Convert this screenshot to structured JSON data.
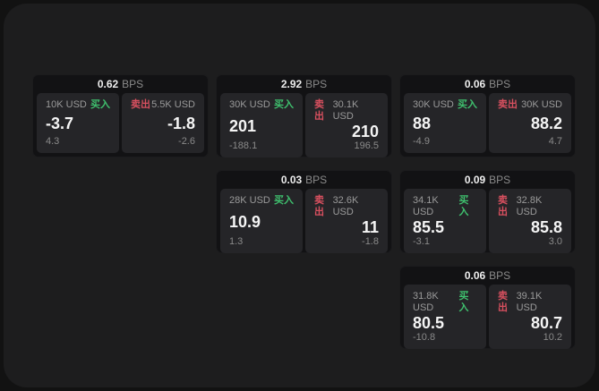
{
  "colors": {
    "buy": "#3fc06e",
    "sell": "#d8505f"
  },
  "labels": {
    "buy": "买入",
    "sell": "卖出",
    "bps_unit": "BPS"
  },
  "cards": [
    {
      "bps": "0.62",
      "grid": {
        "col": 1,
        "row": 1
      },
      "buy": {
        "amount": "10K USD",
        "price": "-3.7",
        "delta": "4.3"
      },
      "sell": {
        "amount": "5.5K USD",
        "price": "-1.8",
        "delta": "-2.6"
      }
    },
    {
      "bps": "2.92",
      "grid": {
        "col": 2,
        "row": 1
      },
      "buy": {
        "amount": "30K USD",
        "price": "201",
        "delta": "-188.1"
      },
      "sell": {
        "amount": "30.1K USD",
        "price": "210",
        "delta": "196.5"
      }
    },
    {
      "bps": "0.06",
      "grid": {
        "col": 3,
        "row": 1
      },
      "buy": {
        "amount": "30K USD",
        "price": "88",
        "delta": "-4.9"
      },
      "sell": {
        "amount": "30K USD",
        "price": "88.2",
        "delta": "4.7"
      }
    },
    {
      "bps": "0.03",
      "grid": {
        "col": 2,
        "row": 2
      },
      "buy": {
        "amount": "28K USD",
        "price": "10.9",
        "delta": "1.3"
      },
      "sell": {
        "amount": "32.6K USD",
        "price": "11",
        "delta": "-1.8"
      }
    },
    {
      "bps": "0.09",
      "grid": {
        "col": 3,
        "row": 2
      },
      "buy": {
        "amount": "34.1K USD",
        "price": "85.5",
        "delta": "-3.1"
      },
      "sell": {
        "amount": "32.8K USD",
        "price": "85.8",
        "delta": "3.0"
      }
    },
    {
      "bps": "0.06",
      "grid": {
        "col": 3,
        "row": 3
      },
      "buy": {
        "amount": "31.8K USD",
        "price": "80.5",
        "delta": "-10.8"
      },
      "sell": {
        "amount": "39.1K USD",
        "price": "80.7",
        "delta": "10.2"
      }
    }
  ]
}
